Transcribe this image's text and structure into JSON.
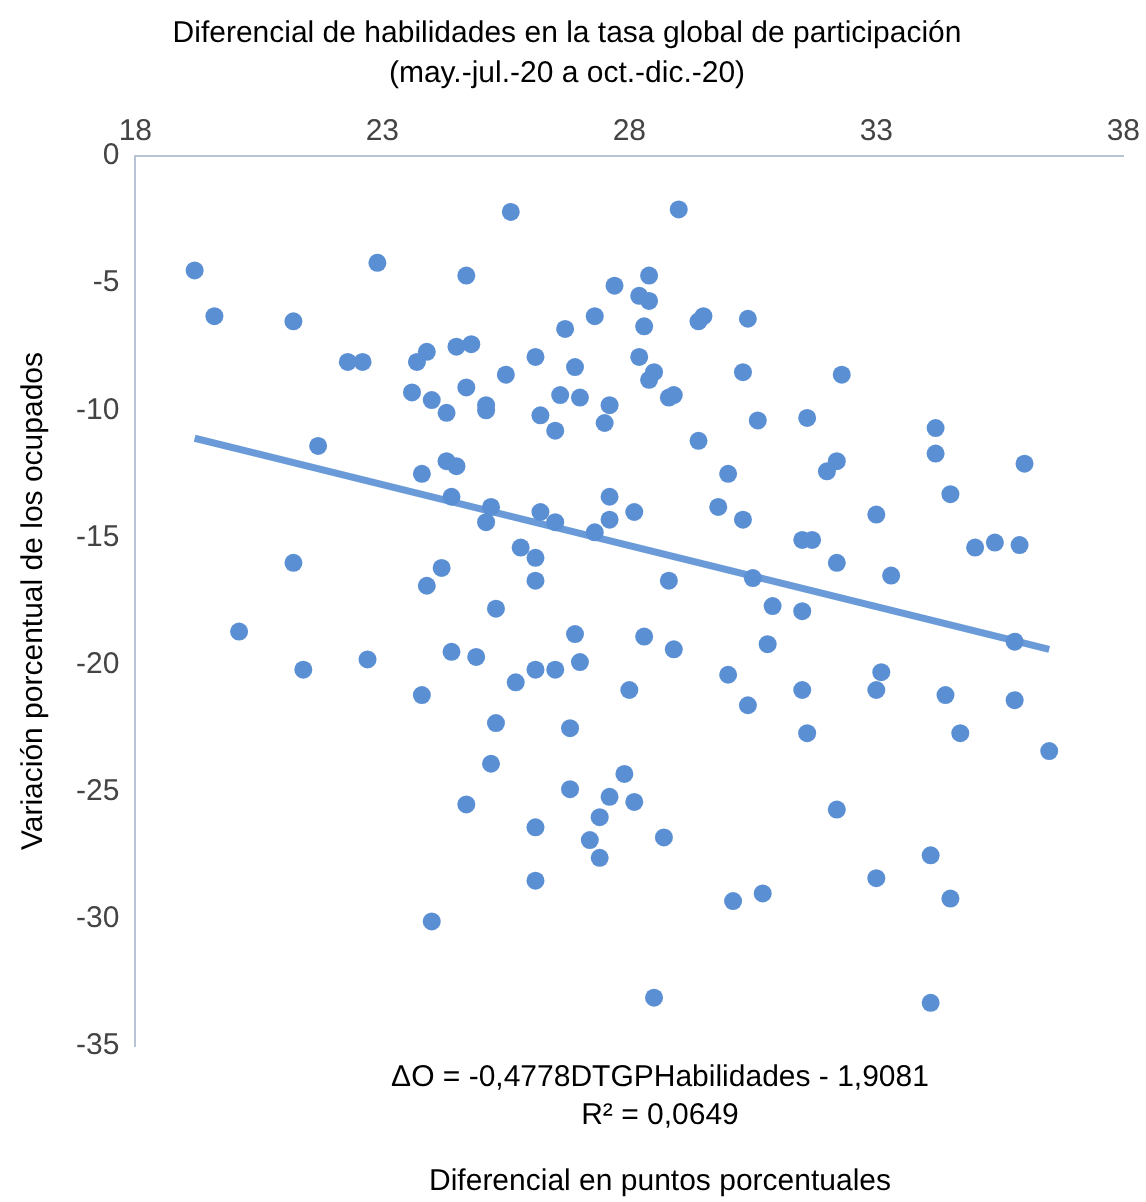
{
  "chart_data": {
    "type": "scatter",
    "title": "Diferencial de habilidades en la tasa global de participación",
    "subtitle": "(may.-jul.-20 a oct.-dic.-20)",
    "xlabel": "Diferencial en puntos porcentuales",
    "ylabel": "Variación porcentual de los ocupados",
    "annotations": [
      "ΔO = -0,4778DTGPHabilidades - 1,9081",
      "R² = 0,0649"
    ],
    "xlim": [
      18,
      38
    ],
    "xticks": [
      18,
      23,
      28,
      33,
      38
    ],
    "ylim": [
      -35,
      0
    ],
    "yticks": [
      0,
      -5,
      -10,
      -15,
      -20,
      -25,
      -30,
      -35
    ],
    "grid": false,
    "legend": false,
    "marker": "circle",
    "series": [
      {
        "color": "#5b8fd4",
        "x": [
          19.2,
          19.6,
          21.2,
          22.9,
          24.7,
          25.6,
          27.7,
          22.3,
          22.6,
          23.7,
          23.9,
          24.5,
          24.8,
          23.6,
          24.0,
          24.3,
          24.7,
          25.1,
          25.1,
          25.5,
          26.1,
          26.7,
          27.3,
          26.9,
          26.6,
          27.0,
          26.2,
          26.5,
          27.6,
          27.5,
          21.7,
          23.8,
          24.3,
          24.5,
          24.4,
          25.2,
          25.1,
          26.2,
          26.5,
          27.6,
          27.6,
          27.3,
          21.2,
          25.8,
          26.1,
          26.1,
          24.2,
          23.9,
          25.3,
          20.1,
          21.4,
          22.7,
          24.4,
          24.9,
          26.9,
          27.0,
          26.1,
          26.5,
          25.7,
          23.8,
          25.3,
          26.8,
          28.0,
          25.2,
          27.9,
          26.8,
          27.6,
          24.7,
          27.4,
          27.2,
          27.4,
          26.1,
          26.1,
          24.0,
          29.0,
          28.4,
          28.2,
          28.4,
          28.3,
          29.4,
          29.5,
          30.4,
          28.2,
          28.4,
          28.5,
          28.8,
          28.9,
          30.3,
          32.3,
          29.4,
          30.6,
          31.6,
          34.2,
          34.2,
          36.0,
          30.0,
          32.2,
          32.0,
          34.5,
          29.8,
          30.3,
          28.1,
          33.0,
          31.5,
          31.7,
          35.0,
          35.4,
          35.9,
          32.2,
          33.3,
          28.8,
          30.5,
          30.9,
          31.5,
          28.3,
          28.9,
          30.8,
          35.8,
          30.0,
          30.4,
          31.5,
          31.6,
          33.0,
          33.1,
          34.4,
          34.7,
          35.8,
          36.5,
          28.1,
          28.7,
          32.2,
          30.1,
          30.7,
          33.0,
          34.1,
          34.5,
          28.5,
          34.1
        ],
        "values": [
          -4.5,
          -6.3,
          -6.5,
          -4.2,
          -4.7,
          -2.2,
          -5.1,
          -8.1,
          -8.1,
          -8.1,
          -7.7,
          -7.5,
          -7.4,
          -9.3,
          -9.6,
          -10.1,
          -9.1,
          -9.8,
          -10.0,
          -8.6,
          -7.9,
          -6.8,
          -6.3,
          -8.3,
          -9.4,
          -9.5,
          -10.2,
          -10.8,
          -9.8,
          -10.5,
          -11.4,
          -12.5,
          -12.0,
          -12.2,
          -13.4,
          -13.8,
          -14.4,
          -14.0,
          -14.4,
          -13.4,
          -14.3,
          -14.8,
          -16.0,
          -15.4,
          -15.8,
          -16.7,
          -16.2,
          -16.9,
          -17.8,
          -18.7,
          -20.2,
          -19.8,
          -19.5,
          -19.7,
          -18.8,
          -19.9,
          -20.2,
          -20.2,
          -20.7,
          -21.2,
          -22.3,
          -22.5,
          -21.0,
          -23.9,
          -24.3,
          -24.9,
          -25.2,
          -25.5,
          -26.0,
          -26.9,
          -27.6,
          -26.4,
          -28.5,
          -30.1,
          -2.1,
          -4.7,
          -5.5,
          -5.7,
          -6.7,
          -6.5,
          -6.3,
          -6.4,
          -7.9,
          -8.8,
          -8.5,
          -9.5,
          -9.4,
          -8.5,
          -8.6,
          -11.2,
          -10.4,
          -10.3,
          -10.7,
          -11.7,
          -12.1,
          -12.5,
          -12.0,
          -12.4,
          -13.3,
          -13.8,
          -14.3,
          -14.0,
          -14.1,
          -15.1,
          -15.1,
          -15.4,
          -15.2,
          -15.3,
          -16.0,
          -16.5,
          -16.7,
          -16.6,
          -17.7,
          -17.9,
          -18.9,
          -19.4,
          -19.2,
          -19.1,
          -20.4,
          -21.6,
          -21.0,
          -22.7,
          -21.0,
          -20.3,
          -21.2,
          -22.7,
          -21.4,
          -23.4,
          -25.4,
          -26.8,
          -25.7,
          -29.3,
          -29.0,
          -28.4,
          -27.5,
          -29.2,
          -33.1,
          -33.3
        ]
      },
      {
        "type": "line",
        "color": "#6a9bd8",
        "marker": "none",
        "x": [
          19.2,
          36.5
        ],
        "values": [
          -11.1,
          -19.4
        ]
      }
    ]
  }
}
